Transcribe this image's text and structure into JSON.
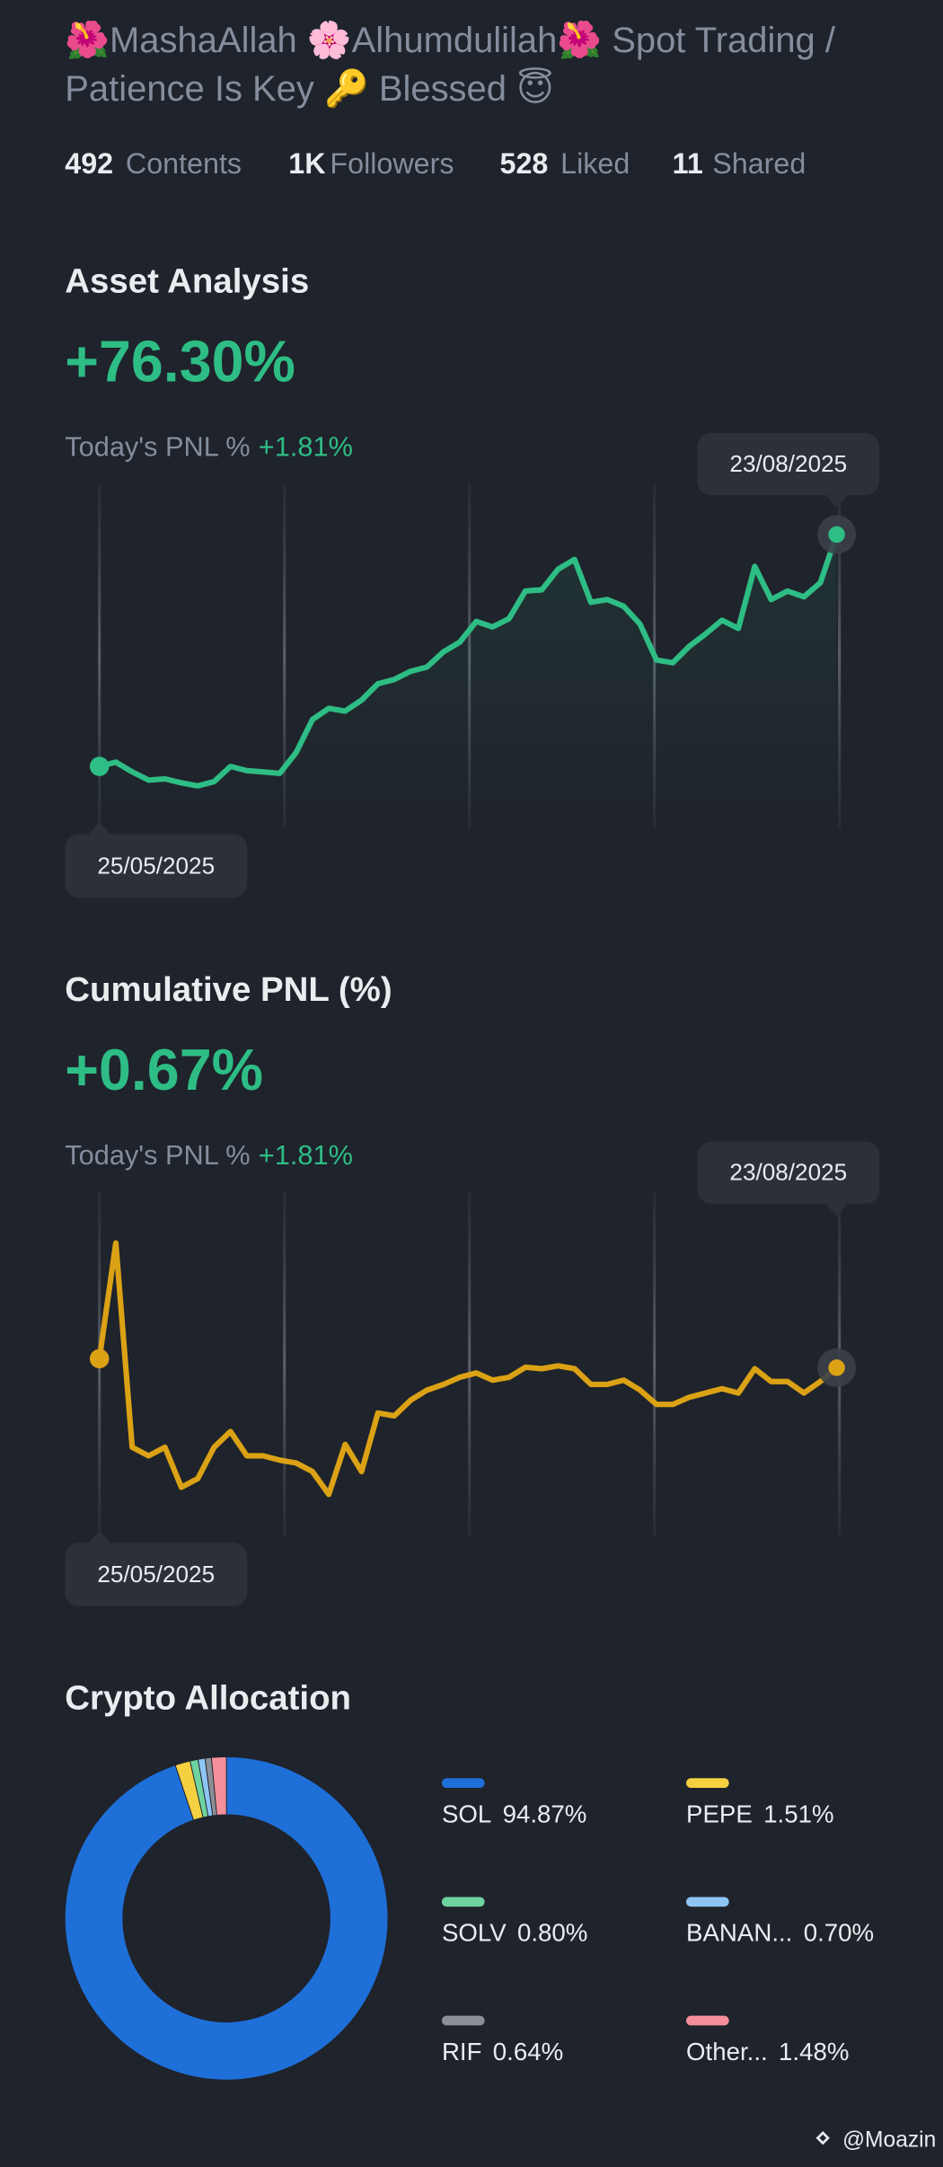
{
  "header": {
    "title_lines": [
      "🌺MashaAllah 🌸Alhumdulilah🌺 Spot Trading /",
      "Patience Is Key 🔑  Blessed 😇"
    ],
    "stats": [
      {
        "value": "492",
        "label": "Contents"
      },
      {
        "value": "1K",
        "label": "Followers"
      },
      {
        "value": "528",
        "label": "Liked"
      },
      {
        "value": "11",
        "label": "Shared"
      }
    ]
  },
  "chart_data": [
    {
      "type": "line",
      "title": "Asset Analysis",
      "headline": "+76.30%",
      "subtitle_label": "Today's PNL %",
      "subtitle_value": "+1.81%",
      "color": "#2ebd85",
      "categories": [
        "25/05/2025",
        null,
        null,
        null,
        null,
        null,
        null,
        null,
        null,
        null,
        null,
        null,
        null,
        null,
        null,
        null,
        null,
        null,
        null,
        null,
        null,
        null,
        null,
        null,
        null,
        null,
        null,
        null,
        null,
        null,
        null,
        null,
        null,
        null,
        null,
        null,
        null,
        null,
        null,
        null,
        null,
        null,
        null,
        null,
        null,
        "23/08/2025"
      ],
      "values": [
        0,
        1.4,
        -1.8,
        -4.5,
        -4.1,
        -5.4,
        -6.4,
        -5.0,
        0,
        -1.4,
        -1.8,
        -2.3,
        4.5,
        15.4,
        19.1,
        18.2,
        21.8,
        27.2,
        28.6,
        31.3,
        32.7,
        37.7,
        40.9,
        47.7,
        45.9,
        48.6,
        57.7,
        58.1,
        64.9,
        68.1,
        54.0,
        54.9,
        52.7,
        46.8,
        35.0,
        34.1,
        39.5,
        43.6,
        48.1,
        45.4,
        65.8,
        54.9,
        57.7,
        55.8,
        60.4,
        76.3
      ]
    },
    {
      "type": "line",
      "title": "Cumulative PNL (%)",
      "headline": "+0.67%",
      "subtitle_label": "Today's PNL %",
      "subtitle_value": "+1.81%",
      "color": "#dba215",
      "categories": [
        "25/05/2025",
        null,
        null,
        null,
        null,
        null,
        null,
        null,
        null,
        null,
        null,
        null,
        null,
        null,
        null,
        null,
        null,
        null,
        null,
        null,
        null,
        null,
        null,
        null,
        null,
        null,
        null,
        null,
        null,
        null,
        null,
        null,
        null,
        null,
        null,
        null,
        null,
        null,
        null,
        null,
        null,
        null,
        null,
        null,
        null,
        "23/08/2025"
      ],
      "values": [
        1.3,
        9.4,
        -4.9,
        -5.5,
        -4.9,
        -7.7,
        -7.1,
        -4.9,
        -3.8,
        -5.5,
        -5.5,
        -5.8,
        -6.0,
        -6.6,
        -8.2,
        -4.7,
        -6.6,
        -2.5,
        -2.7,
        -1.6,
        -0.9,
        -0.5,
        0.0,
        0.3,
        -0.2,
        0.0,
        0.7,
        0.6,
        0.8,
        0.6,
        -0.5,
        -0.5,
        -0.2,
        -0.9,
        -1.9,
        -1.9,
        -1.4,
        -1.1,
        -0.8,
        -1.1,
        0.6,
        -0.3,
        -0.3,
        -1.1,
        -0.3,
        0.67
      ]
    },
    {
      "type": "pie",
      "title": "Crypto Allocation",
      "categories": [
        "SOL",
        "PEPE",
        "SOLV",
        "BANAN...",
        "RIF",
        "Other..."
      ],
      "values": [
        94.87,
        1.51,
        0.8,
        0.7,
        0.64,
        1.48
      ],
      "value_labels": [
        "94.87%",
        "1.51%",
        "0.80%",
        "0.70%",
        "0.64%",
        "1.48%"
      ],
      "colors": [
        "#1f6fd9",
        "#f5d142",
        "#6fd3a0",
        "#8ec5f5",
        "#8a8f98",
        "#f5909a"
      ]
    }
  ],
  "watermark": "@Moazin"
}
